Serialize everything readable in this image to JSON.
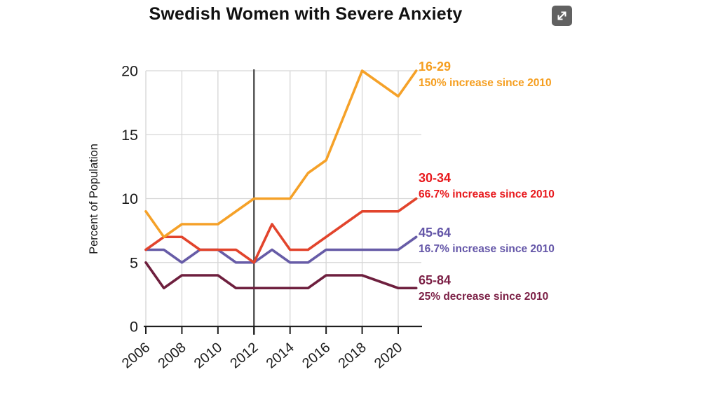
{
  "header": {
    "title": "Swedish Women with Severe Anxiety"
  },
  "expand_button": {
    "icon": "expand-arrows-icon"
  },
  "chart_data": {
    "type": "line",
    "title": "Swedish Women with Severe Anxiety",
    "xlabel": "",
    "ylabel": "Percent of Population",
    "x": [
      2006,
      2007,
      2008,
      2009,
      2010,
      2011,
      2012,
      2013,
      2014,
      2015,
      2016,
      2017,
      2018,
      2019,
      2020,
      2021
    ],
    "xticks": [
      2006,
      2008,
      2010,
      2012,
      2014,
      2016,
      2018,
      2020
    ],
    "yticks": [
      0,
      5,
      10,
      15,
      20
    ],
    "ylim": [
      0,
      20
    ],
    "grid": true,
    "grid_color": "#d6d6d6",
    "axis_color": "#1f1f1f",
    "reference_line_x": 2012,
    "reference_line_color": "#565656",
    "legend_position": "right",
    "series": [
      {
        "name": "16-29",
        "annotation": "150% increase since 2010",
        "color": "#F5A128",
        "label_color": "#F59E1F",
        "values": [
          9,
          7,
          8,
          8,
          8,
          9,
          10,
          10,
          10,
          12,
          13,
          16.5,
          20,
          19,
          18,
          20
        ]
      },
      {
        "name": "30-34",
        "annotation": "66.7% increase since 2010",
        "color": "#E2442C",
        "label_color": "#E8191D",
        "values": [
          6,
          7,
          7,
          6,
          6,
          6,
          5,
          8,
          6,
          6,
          7,
          8,
          9,
          9,
          9,
          10
        ]
      },
      {
        "name": "45-64",
        "annotation": "16.7% increase since 2010",
        "color": "#675CA7",
        "label_color": "#6456A8",
        "values": [
          6,
          6,
          5,
          6,
          6,
          5,
          5,
          6,
          5,
          5,
          6,
          6,
          6,
          6,
          6,
          7
        ]
      },
      {
        "name": "65-84",
        "annotation": "25% decrease since 2010",
        "color": "#6E1F3E",
        "label_color": "#7B1F45",
        "values": [
          5,
          3,
          4,
          4,
          4,
          3,
          3,
          3,
          3,
          3,
          4,
          4,
          4,
          3.5,
          3,
          3
        ]
      }
    ]
  }
}
